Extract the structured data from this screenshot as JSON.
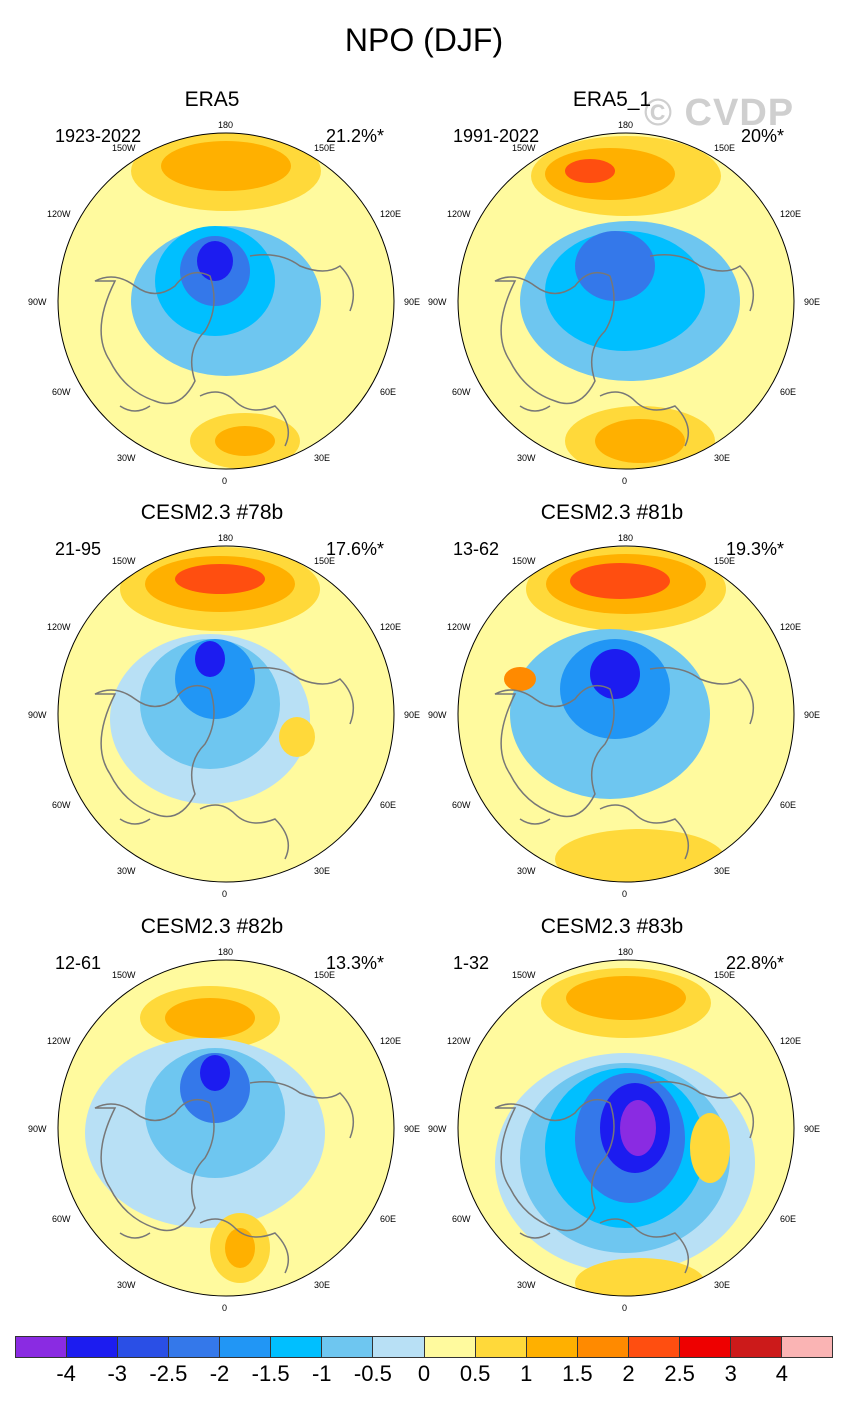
{
  "title": "NPO (DJF)",
  "watermark": "© CVDP",
  "panels": [
    {
      "title": "ERA5",
      "years": "1923-2022",
      "pct": "21.2%*"
    },
    {
      "title": "ERA5_1",
      "years": "1991-2022",
      "pct": "20%*"
    },
    {
      "title": "CESM2.3 #78b",
      "years": "21-95",
      "pct": "17.6%*"
    },
    {
      "title": "CESM2.3 #81b",
      "years": "13-62",
      "pct": "19.3%*"
    },
    {
      "title": "CESM2.3 #82b",
      "years": "12-61",
      "pct": "13.3%*"
    },
    {
      "title": "CESM2.3 #83b",
      "years": "1-32",
      "pct": "22.8%*"
    }
  ],
  "lon_labels": {
    "l180": "180",
    "l150w": "150W",
    "l150e": "150E",
    "l120w": "120W",
    "l120e": "120E",
    "l90w": "90W",
    "l90e": "90E",
    "l60w": "60W",
    "l60e": "60E",
    "l30w": "30W",
    "l30e": "30E",
    "l0": "0"
  },
  "colorbar": {
    "colors": [
      "#8a2be2",
      "#1c1cf0",
      "#2a4fe6",
      "#3478ea",
      "#2196f5",
      "#00bfff",
      "#6ec6f0",
      "#b8e0f5",
      "#fffa9e",
      "#ffd93a",
      "#ffb000",
      "#ff8a00",
      "#ff4e10",
      "#ee0000",
      "#cc1a1a",
      "#fab4b4"
    ],
    "labels": [
      "-4",
      "-3",
      "-2.5",
      "-2",
      "-1.5",
      "-1",
      "-0.5",
      "0",
      "0.5",
      "1",
      "1.5",
      "2",
      "2.5",
      "3",
      "4"
    ]
  }
}
